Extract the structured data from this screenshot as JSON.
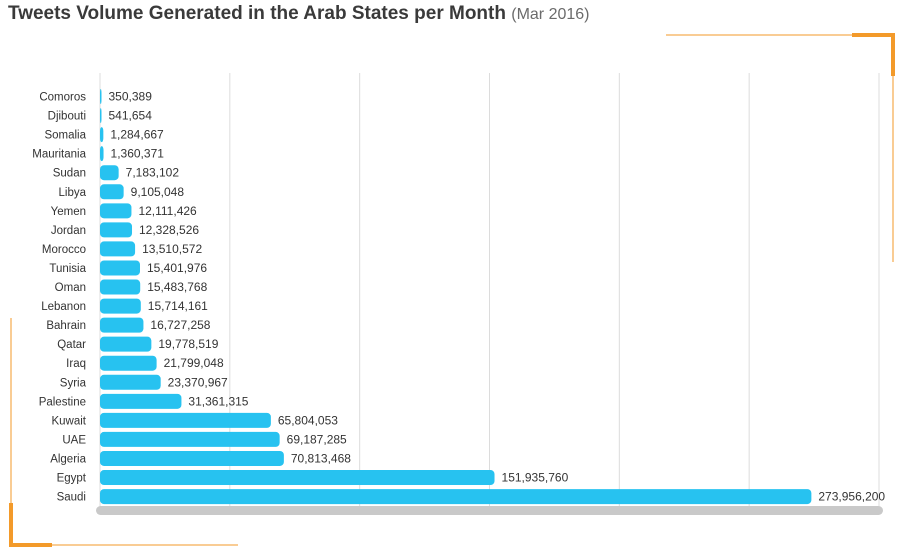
{
  "title": "Tweets Volume Generated in the Arab States per Month",
  "subtitle": "(Mar 2016)",
  "colors": {
    "bar": "#27c2f0",
    "accent": "#f39a2a",
    "grid": "#dcdcdc",
    "base": "#c9c9c9"
  },
  "chart_data": {
    "type": "bar",
    "orientation": "horizontal",
    "title": "Tweets Volume Generated in the Arab States per Month",
    "subtitle": "(Mar 2016)",
    "categories": [
      "Comoros",
      "Djibouti",
      "Somalia",
      "Mauritania",
      "Sudan",
      "Libya",
      "Yemen",
      "Jordan",
      "Morocco",
      "Tunisia",
      "Oman",
      "Lebanon",
      "Bahrain",
      "Qatar",
      "Iraq",
      "Syria",
      "Palestine",
      "Kuwait",
      "UAE",
      "Algeria",
      "Egypt",
      "Saudi"
    ],
    "values": [
      350389,
      541654,
      1284667,
      1360371,
      7183102,
      9105048,
      12111426,
      12328526,
      13510572,
      15401976,
      15483768,
      15714161,
      16727258,
      19778519,
      21799048,
      23370967,
      31361315,
      65804053,
      69187285,
      70813468,
      151935760,
      273956200
    ],
    "value_labels": [
      "350,389",
      "541,654",
      "1,284,667",
      "1,360,371",
      "7,183,102",
      "9,105,048",
      "12,111,426",
      "12,328,526",
      "13,510,572",
      "15,401,976",
      "15,483,768",
      "15,714,161",
      "16,727,258",
      "19,778,519",
      "21,799,048",
      "23,370,967",
      "31,361,315",
      "65,804,053",
      "69,187,285",
      "70,813,468",
      "151,935,760",
      "273,956,200"
    ],
    "xlim": [
      0,
      300000000
    ],
    "grid": true,
    "xlabel": "",
    "ylabel": ""
  }
}
